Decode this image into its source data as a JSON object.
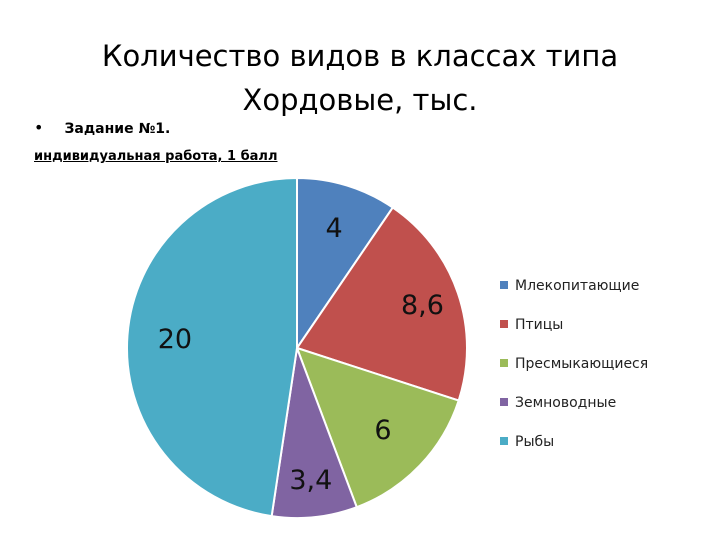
{
  "slide": {
    "title_line1": "Количество видов в классах типа",
    "title_line2": "Хордовые, тыс.",
    "task_bullet": "•",
    "task_label": "Задание №1.",
    "subtitle": "индивидуальная работа,  1 балл"
  },
  "chart_data": {
    "type": "pie",
    "title": "",
    "legend_position": "right",
    "start_angle_deg": 0,
    "direction": "clockwise",
    "slices": [
      {
        "name": "Млекопитающие",
        "value": 4,
        "label": "4",
        "color": "#4f81bd"
      },
      {
        "name": "Птицы",
        "value": 8.6,
        "label": "8,6",
        "color": "#c0504d"
      },
      {
        "name": "Пресмыкающиеся",
        "value": 6,
        "label": "6",
        "color": "#9bbb59"
      },
      {
        "name": "Земноводные",
        "value": 3.4,
        "label": "3,4",
        "color": "#8064a2"
      },
      {
        "name": "Рыбы",
        "value": 20,
        "label": "20",
        "color": "#4bacc6"
      }
    ]
  }
}
